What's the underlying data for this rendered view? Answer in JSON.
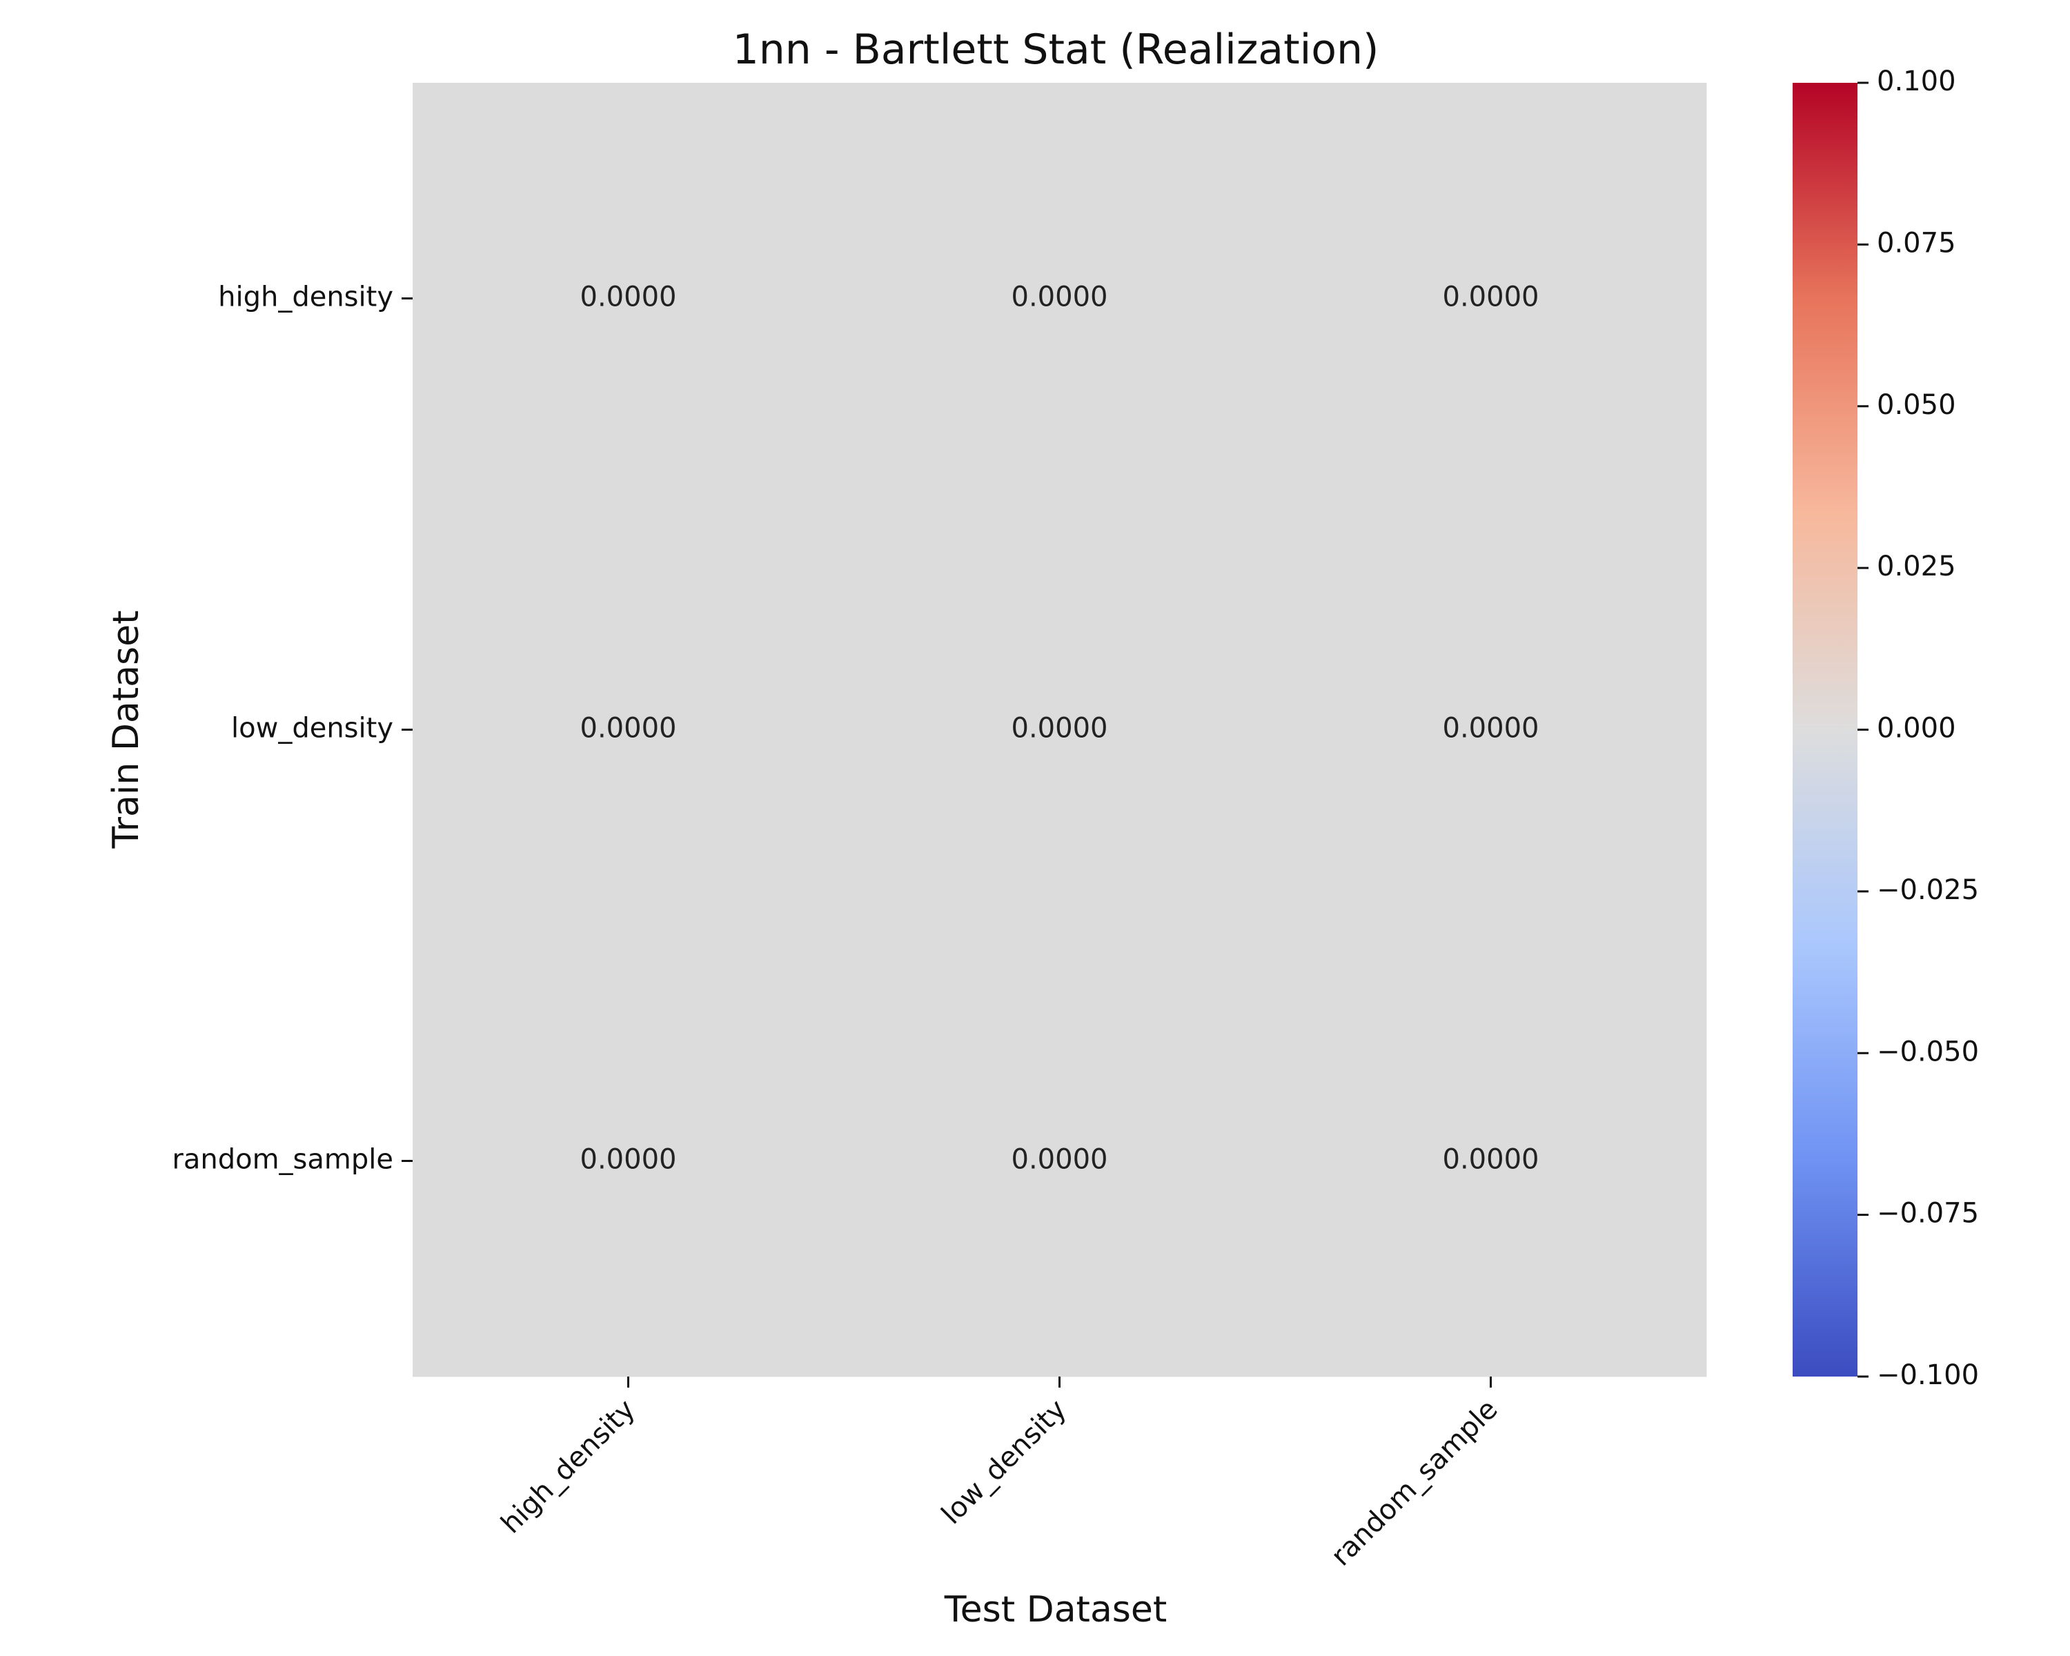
{
  "chart_data": {
    "type": "heatmap",
    "title": "1nn - Bartlett Stat (Realization)",
    "xlabel": "Test Dataset",
    "ylabel": "Train Dataset",
    "x_categories": [
      "high_density",
      "low_density",
      "random_sample"
    ],
    "y_categories": [
      "high_density",
      "low_density",
      "random_sample"
    ],
    "values": [
      [
        0.0,
        0.0,
        0.0
      ],
      [
        0.0,
        0.0,
        0.0
      ],
      [
        0.0,
        0.0,
        0.0
      ]
    ],
    "value_labels": [
      [
        "0.0000",
        "0.0000",
        "0.0000"
      ],
      [
        "0.0000",
        "0.0000",
        "0.0000"
      ],
      [
        "0.0000",
        "0.0000",
        "0.0000"
      ]
    ],
    "colormap": "coolwarm",
    "cell_color": "#dcdcdc",
    "colorbar": {
      "vmin": -0.1,
      "vmax": 0.1,
      "ticks": [
        0.1,
        0.075,
        0.05,
        0.025,
        0.0,
        -0.025,
        -0.05,
        -0.075,
        -0.1
      ],
      "tick_labels": [
        "0.100",
        "0.075",
        "0.050",
        "0.025",
        "0.000",
        "−0.025",
        "−0.050",
        "−0.075",
        "−0.100"
      ],
      "colors": [
        "#3b4cc0",
        "#6f92f3",
        "#aac7fd",
        "#dddddd",
        "#f7b89c",
        "#e7745b",
        "#b40426"
      ]
    }
  }
}
